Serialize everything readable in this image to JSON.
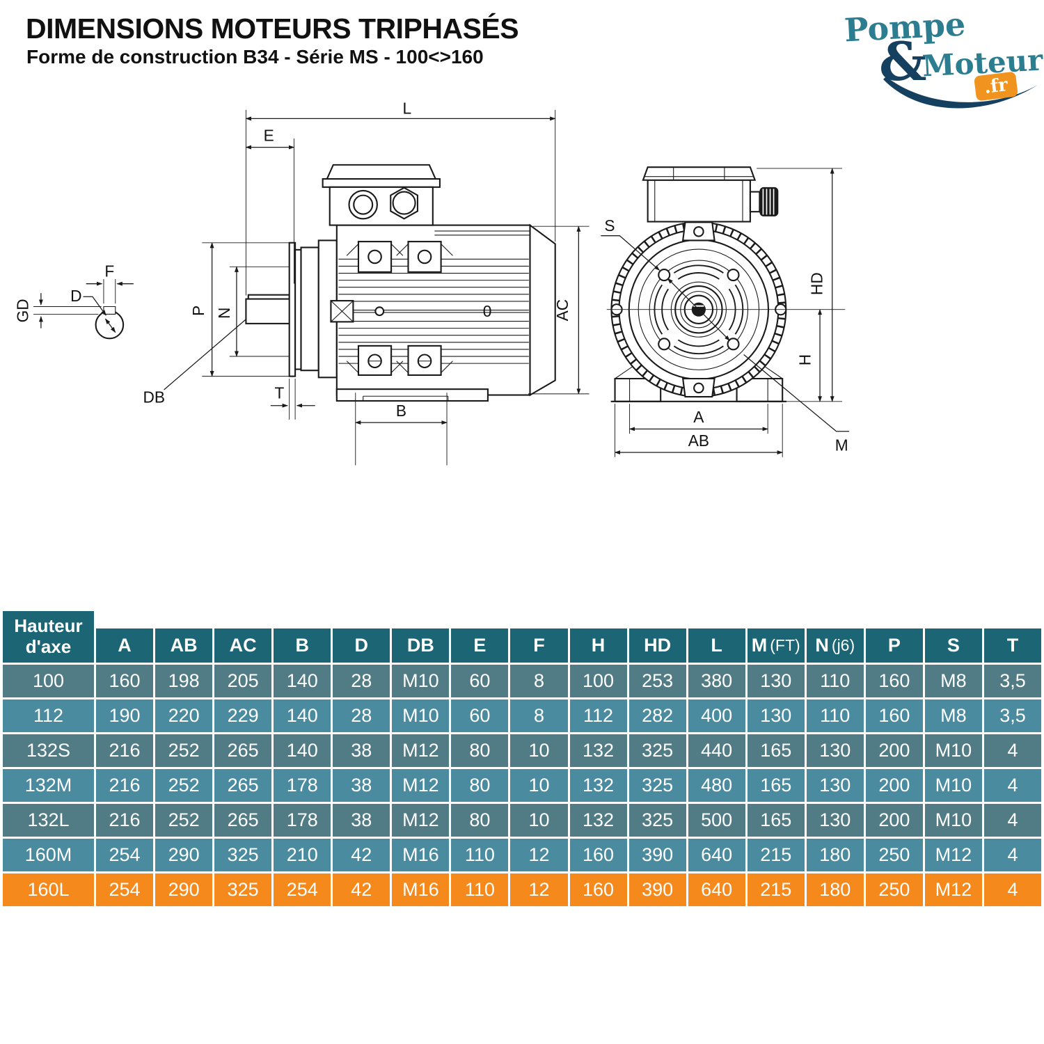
{
  "header": {
    "title": "DIMENSIONS MOTEURS TRIPHASÉS",
    "subtitle": "Forme de construction B34 - Série MS - 100<>160"
  },
  "logo": {
    "word1": "Pompe",
    "amp": "&",
    "word2": "Moteur",
    "tld": ".fr"
  },
  "diagram": {
    "labels": {
      "L": "L",
      "E": "E",
      "P": "P",
      "N": "N",
      "DB": "DB",
      "T": "T",
      "B": "B",
      "AC": "AC",
      "zero": "0",
      "F": "F",
      "GD": "GD",
      "D": "D",
      "S": "S",
      "HD": "HD",
      "H": "H",
      "A": "A",
      "AB": "AB",
      "M": "M"
    }
  },
  "table": {
    "headers": [
      {
        "text": "Hauteur d'axe"
      },
      {
        "text": "A"
      },
      {
        "text": "AB"
      },
      {
        "text": "AC"
      },
      {
        "text": "B"
      },
      {
        "text": "D"
      },
      {
        "text": "DB"
      },
      {
        "text": "E"
      },
      {
        "text": "F"
      },
      {
        "text": "H"
      },
      {
        "text": "HD"
      },
      {
        "text": "L"
      },
      {
        "text": "M",
        "paren": "(FT)"
      },
      {
        "text": "N",
        "paren": "(j6)"
      },
      {
        "text": "P"
      },
      {
        "text": "S"
      },
      {
        "text": "T"
      }
    ],
    "rows": [
      {
        "name": "100",
        "highlight": false,
        "values": [
          "160",
          "198",
          "205",
          "140",
          "28",
          "M10",
          "60",
          "8",
          "100",
          "253",
          "380",
          "130",
          "110",
          "160",
          "M8",
          "3,5"
        ]
      },
      {
        "name": "112",
        "highlight": false,
        "values": [
          "190",
          "220",
          "229",
          "140",
          "28",
          "M10",
          "60",
          "8",
          "112",
          "282",
          "400",
          "130",
          "110",
          "160",
          "M8",
          "3,5"
        ]
      },
      {
        "name": "132S",
        "highlight": false,
        "values": [
          "216",
          "252",
          "265",
          "140",
          "38",
          "M12",
          "80",
          "10",
          "132",
          "325",
          "440",
          "165",
          "130",
          "200",
          "M10",
          "4"
        ]
      },
      {
        "name": "132M",
        "highlight": false,
        "values": [
          "216",
          "252",
          "265",
          "178",
          "38",
          "M12",
          "80",
          "10",
          "132",
          "325",
          "480",
          "165",
          "130",
          "200",
          "M10",
          "4"
        ]
      },
      {
        "name": "132L",
        "highlight": false,
        "values": [
          "216",
          "252",
          "265",
          "178",
          "38",
          "M12",
          "80",
          "10",
          "132",
          "325",
          "500",
          "165",
          "130",
          "200",
          "M10",
          "4"
        ]
      },
      {
        "name": "160M",
        "highlight": false,
        "values": [
          "254",
          "290",
          "325",
          "210",
          "42",
          "M16",
          "110",
          "12",
          "160",
          "390",
          "640",
          "215",
          "180",
          "250",
          "M12",
          "4"
        ]
      },
      {
        "name": "160L",
        "highlight": true,
        "values": [
          "254",
          "290",
          "325",
          "254",
          "42",
          "M16",
          "110",
          "12",
          "160",
          "390",
          "640",
          "215",
          "180",
          "250",
          "M12",
          "4"
        ]
      }
    ]
  },
  "colors": {
    "header_bg": "#1c6575",
    "row_dark": "#527c85",
    "row_light": "#4a8ba0",
    "row_highlight": "#f6891c",
    "logo_teal": "#2d7d90",
    "logo_navy": "#16405f",
    "logo_orange": "#f0941f"
  }
}
